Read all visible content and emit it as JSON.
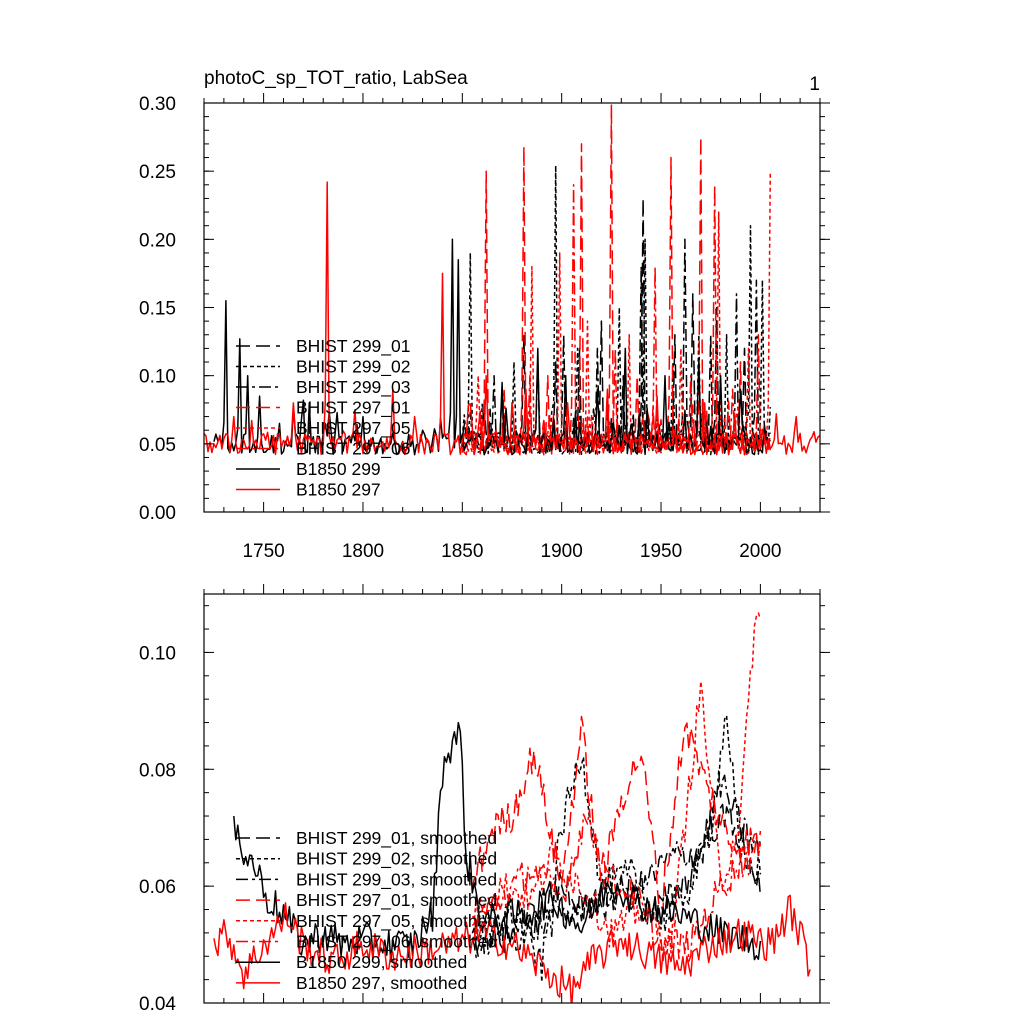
{
  "colors": {
    "black": "#000000",
    "red": "#ff0000",
    "background": "#ffffff"
  },
  "panel_number": "1",
  "chart_data": [
    {
      "type": "line",
      "title": "photoC_sp_TOT_ratio, LabSea",
      "xlabel": "",
      "ylabel": "",
      "xlim": [
        1720,
        2030
      ],
      "ylim": [
        0.0,
        0.3
      ],
      "xticks": [
        1750,
        1800,
        1850,
        1900,
        1950,
        2000
      ],
      "yticks": [
        0.0,
        0.05,
        0.1,
        0.15,
        0.2,
        0.25,
        0.3
      ],
      "ytick_labels": [
        "0.00",
        "0.05",
        "0.10",
        "0.15",
        "0.20",
        "0.25",
        "0.30"
      ],
      "legend_position": "left-middle",
      "series": [
        {
          "name": "BHIST 299_01",
          "color": "#000000",
          "dash": "long-dash",
          "x_start": 1850,
          "x_end": 2005,
          "baseline": 0.052,
          "noise": 0.008,
          "peaks": [
            [
              1861,
              0.08
            ],
            [
              1870,
              0.09
            ],
            [
              1881,
              0.13
            ],
            [
              1897,
              0.11
            ],
            [
              1909,
              0.12
            ],
            [
              1920,
              0.14
            ],
            [
              1931,
              0.1
            ],
            [
              1941,
              0.23
            ],
            [
              1957,
              0.13
            ],
            [
              1966,
              0.16
            ],
            [
              1978,
              0.15
            ],
            [
              1992,
              0.12
            ]
          ]
        },
        {
          "name": "BHIST 299_02",
          "color": "#000000",
          "dash": "short-dash",
          "x_start": 1850,
          "x_end": 2005,
          "baseline": 0.05,
          "noise": 0.008,
          "peaks": [
            [
              1854,
              0.19
            ],
            [
              1876,
              0.11
            ],
            [
              1897,
              0.254
            ],
            [
              1908,
              0.12
            ],
            [
              1929,
              0.15
            ],
            [
              1942,
              0.2
            ],
            [
              1956,
              0.11
            ],
            [
              1969,
              0.13
            ],
            [
              1983,
              0.13
            ],
            [
              1995,
              0.21
            ],
            [
              2001,
              0.17
            ]
          ]
        },
        {
          "name": "BHIST 299_03",
          "color": "#000000",
          "dash": "dash-dot",
          "x_start": 1850,
          "x_end": 2005,
          "baseline": 0.052,
          "noise": 0.008,
          "peaks": [
            [
              1866,
              0.1
            ],
            [
              1888,
              0.11
            ],
            [
              1901,
              0.13
            ],
            [
              1918,
              0.12
            ],
            [
              1940,
              0.18
            ],
            [
              1962,
              0.2
            ],
            [
              1975,
              0.13
            ],
            [
              1988,
              0.16
            ],
            [
              1998,
              0.17
            ]
          ]
        },
        {
          "name": "BHIST 297_01",
          "color": "#ff0000",
          "dash": "long-dash",
          "x_start": 1850,
          "x_end": 2005,
          "baseline": 0.05,
          "noise": 0.008,
          "peaks": [
            [
              1862,
              0.25
            ],
            [
              1881,
              0.268
            ],
            [
              1893,
              0.1
            ],
            [
              1910,
              0.27
            ],
            [
              1925,
              0.299
            ],
            [
              1938,
              0.1
            ],
            [
              1955,
              0.26
            ],
            [
              1970,
              0.275
            ],
            [
              1990,
              0.11
            ]
          ]
        },
        {
          "name": "BHIST 297_05",
          "color": "#ff0000",
          "dash": "short-dash",
          "x_start": 1850,
          "x_end": 2005,
          "baseline": 0.05,
          "noise": 0.008,
          "peaks": [
            [
              1858,
              0.1
            ],
            [
              1885,
              0.18
            ],
            [
              1899,
              0.19
            ],
            [
              1913,
              0.14
            ],
            [
              1934,
              0.13
            ],
            [
              1960,
              0.12
            ],
            [
              1979,
              0.22
            ],
            [
              1994,
              0.12
            ],
            [
              2005,
              0.25
            ]
          ]
        },
        {
          "name": "BHIST 297_06",
          "color": "#ff0000",
          "dash": "dash-dot",
          "x_start": 1850,
          "x_end": 2005,
          "baseline": 0.05,
          "noise": 0.008,
          "peaks": [
            [
              1871,
              0.09
            ],
            [
              1884,
              0.1
            ],
            [
              1906,
              0.24
            ],
            [
              1927,
              0.12
            ],
            [
              1947,
              0.18
            ],
            [
              1965,
              0.1
            ],
            [
              1977,
              0.24
            ],
            [
              1986,
              0.09
            ],
            [
              1999,
              0.13
            ]
          ]
        },
        {
          "name": "B1850 299",
          "color": "#000000",
          "dash": "solid",
          "x_start": 1725,
          "x_end": 2003,
          "baseline": 0.05,
          "noise": 0.008,
          "peaks": [
            [
              1731,
              0.155
            ],
            [
              1738,
              0.127
            ],
            [
              1742,
              0.1
            ],
            [
              1748,
              0.085
            ],
            [
              1758,
              0.065
            ],
            [
              1770,
              0.082
            ],
            [
              1781,
              0.065
            ],
            [
              1800,
              0.07
            ],
            [
              1830,
              0.06
            ],
            [
              1845,
              0.2
            ],
            [
              1848,
              0.185
            ],
            [
              1870,
              0.095
            ],
            [
              1888,
              0.12
            ],
            [
              1902,
              0.1
            ],
            [
              1918,
              0.09
            ],
            [
              1932,
              0.12
            ],
            [
              1952,
              0.1
            ],
            [
              1969,
              0.11
            ],
            [
              1980,
              0.1
            ],
            [
              1990,
              0.09
            ]
          ]
        },
        {
          "name": "B1850 297",
          "color": "#ff0000",
          "dash": "solid",
          "x_start": 1720,
          "x_end": 2030,
          "baseline": 0.05,
          "noise": 0.008,
          "peaks": [
            [
              1735,
              0.07
            ],
            [
              1765,
              0.08
            ],
            [
              1782,
              0.242
            ],
            [
              1796,
              0.075
            ],
            [
              1815,
              0.09
            ],
            [
              1826,
              0.07
            ],
            [
              1840,
              0.175
            ],
            [
              1862,
              0.1
            ],
            [
              1882,
              0.09
            ],
            [
              1903,
              0.08
            ],
            [
              1923,
              0.09
            ],
            [
              1948,
              0.085
            ],
            [
              1972,
              0.08
            ],
            [
              2008,
              0.072
            ],
            [
              2018,
              0.07
            ]
          ]
        }
      ]
    },
    {
      "type": "line",
      "title": "",
      "xlabel": "",
      "ylabel": "",
      "xlim": [
        1720,
        2030
      ],
      "ylim": [
        0.04,
        0.11
      ],
      "xticks": [
        1750,
        1800,
        1850,
        1900,
        1950,
        2000
      ],
      "yticks": [
        0.04,
        0.06,
        0.08,
        0.1
      ],
      "ytick_labels": [
        "0.04",
        "0.06",
        "0.08",
        "0.10"
      ],
      "legend_position": "bottom-left",
      "series": [
        {
          "name": "BHIST 299_01, smoothed",
          "color": "#000000",
          "dash": "long-dash",
          "x_start": 1855,
          "x_end": 2000,
          "knots": [
            [
              1855,
              0.05
            ],
            [
              1870,
              0.052
            ],
            [
              1885,
              0.055
            ],
            [
              1900,
              0.06
            ],
            [
              1915,
              0.055
            ],
            [
              1930,
              0.06
            ],
            [
              1945,
              0.055
            ],
            [
              1955,
              0.058
            ],
            [
              1965,
              0.062
            ],
            [
              1975,
              0.07
            ],
            [
              1985,
              0.072
            ],
            [
              2000,
              0.06
            ]
          ]
        },
        {
          "name": "BHIST 299_02, smoothed",
          "color": "#000000",
          "dash": "short-dash",
          "x_start": 1855,
          "x_end": 2000,
          "knots": [
            [
              1855,
              0.052
            ],
            [
              1875,
              0.056
            ],
            [
              1890,
              0.046
            ],
            [
              1900,
              0.07
            ],
            [
              1910,
              0.083
            ],
            [
              1920,
              0.06
            ],
            [
              1935,
              0.062
            ],
            [
              1950,
              0.054
            ],
            [
              1965,
              0.06
            ],
            [
              1975,
              0.07
            ],
            [
              1983,
              0.09
            ],
            [
              1990,
              0.064
            ],
            [
              2000,
              0.063
            ]
          ]
        },
        {
          "name": "BHIST 299_03, smoothed",
          "color": "#000000",
          "dash": "dash-dot",
          "x_start": 1855,
          "x_end": 2000,
          "knots": [
            [
              1855,
              0.05
            ],
            [
              1880,
              0.052
            ],
            [
              1900,
              0.055
            ],
            [
              1920,
              0.058
            ],
            [
              1940,
              0.06
            ],
            [
              1955,
              0.065
            ],
            [
              1970,
              0.066
            ],
            [
              1980,
              0.078
            ],
            [
              1990,
              0.07
            ],
            [
              2000,
              0.066
            ]
          ]
        },
        {
          "name": "BHIST 297_01, smoothed",
          "color": "#ff0000",
          "dash": "long-dash",
          "x_start": 1855,
          "x_end": 2000,
          "knots": [
            [
              1855,
              0.06
            ],
            [
              1865,
              0.07
            ],
            [
              1875,
              0.072
            ],
            [
              1886,
              0.083
            ],
            [
              1900,
              0.06
            ],
            [
              1910,
              0.087
            ],
            [
              1920,
              0.06
            ],
            [
              1930,
              0.075
            ],
            [
              1940,
              0.083
            ],
            [
              1950,
              0.056
            ],
            [
              1962,
              0.088
            ],
            [
              1972,
              0.078
            ],
            [
              1985,
              0.067
            ],
            [
              2000,
              0.068
            ]
          ]
        },
        {
          "name": "BHIST 297_05, smoothed",
          "color": "#ff0000",
          "dash": "short-dash",
          "x_start": 1855,
          "x_end": 2000,
          "knots": [
            [
              1855,
              0.055
            ],
            [
              1870,
              0.06
            ],
            [
              1885,
              0.058
            ],
            [
              1895,
              0.065
            ],
            [
              1910,
              0.06
            ],
            [
              1925,
              0.052
            ],
            [
              1940,
              0.056
            ],
            [
              1955,
              0.05
            ],
            [
              1970,
              0.094
            ],
            [
              1980,
              0.06
            ],
            [
              1990,
              0.072
            ],
            [
              1997,
              0.105
            ]
          ]
        },
        {
          "name": "BHIST 297_06, smoothed",
          "color": "#ff0000",
          "dash": "dash-dot",
          "x_start": 1855,
          "x_end": 2000,
          "knots": [
            [
              1855,
              0.054
            ],
            [
              1870,
              0.058
            ],
            [
              1885,
              0.063
            ],
            [
              1900,
              0.058
            ],
            [
              1912,
              0.072
            ],
            [
              1925,
              0.061
            ],
            [
              1938,
              0.058
            ],
            [
              1950,
              0.05
            ],
            [
              1965,
              0.05
            ],
            [
              1980,
              0.06
            ],
            [
              1990,
              0.064
            ],
            [
              2000,
              0.066
            ]
          ]
        },
        {
          "name": "B1850 299, smoothed",
          "color": "#000000",
          "dash": "solid",
          "x_start": 1735,
          "x_end": 2000,
          "knots": [
            [
              1735,
              0.069
            ],
            [
              1737,
              0.072
            ],
            [
              1740,
              0.065
            ],
            [
              1745,
              0.064
            ],
            [
              1752,
              0.058
            ],
            [
              1760,
              0.055
            ],
            [
              1770,
              0.05
            ],
            [
              1780,
              0.052
            ],
            [
              1790,
              0.05
            ],
            [
              1800,
              0.051
            ],
            [
              1810,
              0.05
            ],
            [
              1825,
              0.05
            ],
            [
              1835,
              0.055
            ],
            [
              1840,
              0.08
            ],
            [
              1845,
              0.085
            ],
            [
              1849,
              0.086
            ],
            [
              1852,
              0.065
            ],
            [
              1860,
              0.054
            ],
            [
              1880,
              0.055
            ],
            [
              1895,
              0.058
            ],
            [
              1910,
              0.053
            ],
            [
              1925,
              0.061
            ],
            [
              1940,
              0.057
            ],
            [
              1960,
              0.055
            ],
            [
              1980,
              0.052
            ],
            [
              2000,
              0.05
            ]
          ]
        },
        {
          "name": "B1850 297, smoothed",
          "color": "#ff0000",
          "dash": "solid",
          "x_start": 1725,
          "x_end": 2025,
          "knots": [
            [
              1725,
              0.05
            ],
            [
              1732,
              0.052
            ],
            [
              1740,
              0.045
            ],
            [
              1750,
              0.05
            ],
            [
              1762,
              0.055
            ],
            [
              1770,
              0.05
            ],
            [
              1785,
              0.047
            ],
            [
              1800,
              0.05
            ],
            [
              1815,
              0.048
            ],
            [
              1830,
              0.049
            ],
            [
              1845,
              0.05
            ],
            [
              1860,
              0.052
            ],
            [
              1875,
              0.05
            ],
            [
              1890,
              0.046
            ],
            [
              1905,
              0.042
            ],
            [
              1915,
              0.047
            ],
            [
              1930,
              0.051
            ],
            [
              1945,
              0.048
            ],
            [
              1960,
              0.046
            ],
            [
              1975,
              0.05
            ],
            [
              1990,
              0.052
            ],
            [
              2005,
              0.05
            ],
            [
              2015,
              0.056
            ],
            [
              2022,
              0.05
            ],
            [
              2025,
              0.046
            ]
          ]
        }
      ]
    }
  ]
}
